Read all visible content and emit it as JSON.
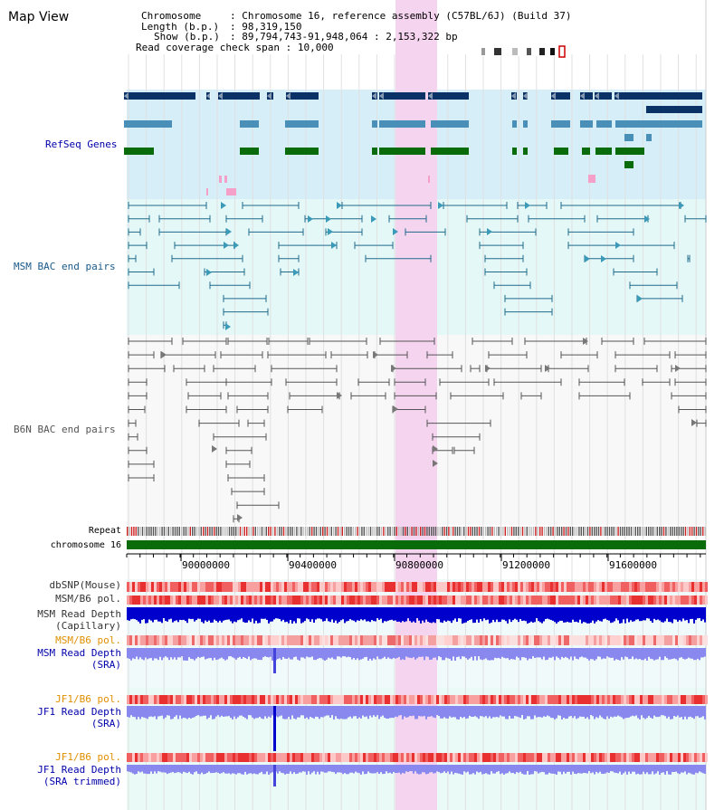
{
  "page": {
    "title": "Map View"
  },
  "info": {
    "chromosome_label": "Chromosome",
    "chromosome_value": "Chromosome 16, reference assembly (C57BL/6J) (Build 37)",
    "length_label": "Length (b.p.)",
    "length_value": "98,319,150",
    "show_label": "Show (b.p.)",
    "show_value": "89,794,743-91,948,064 : 2,153,322 bp",
    "span_label": "Read coverage check span",
    "span_value": "10,000"
  },
  "tracks": {
    "refseq": "RefSeq Genes",
    "msm_bac": "MSM BAC end pairs",
    "b6n_bac": "B6N BAC end pairs",
    "repeat": "Repeat",
    "chromosome": "chromosome 16",
    "dbsnp": "dbSNP(Mouse)",
    "msm_b6_pol_1": "MSM/B6 pol.",
    "msm_cap_1": "MSM Read Depth",
    "msm_cap_2": "(Capillary)",
    "msm_b6_pol_2": "MSM/B6 pol.",
    "msm_sra_1": "MSM Read Depth",
    "msm_sra_2": "(SRA)",
    "jf1_pol_1": "JF1/B6 pol.",
    "jf1_sra_1": "JF1 Read Depth",
    "jf1_sra_2": "(SRA)",
    "jf1_pol_2": "JF1/B6 pol.",
    "jf1_trim_1": "JF1 Read Depth",
    "jf1_trim_2": "(SRA trimmed)"
  },
  "axis": {
    "ticks": [
      "90000000",
      "90400000",
      "90800000",
      "91200000",
      "91600000"
    ]
  },
  "colors": {
    "refseq_bg": "#d6eef8",
    "bac_bg": "#e4f8f8",
    "highlight": "#f4d4ee",
    "gene_dark": "#0b3266",
    "gene_mid": "#4a8fb8",
    "gene_green": "#0a6b0a",
    "msm_line": "#1f6a8a",
    "b6n_line": "#555555",
    "chrom_bar": "#0a6b0a",
    "label_navy": "#000080",
    "label_teal": "#1a5a8a",
    "label_orange": "#e09000",
    "depth_blue": "#0000cc",
    "depth_light": "#8888ee"
  }
}
